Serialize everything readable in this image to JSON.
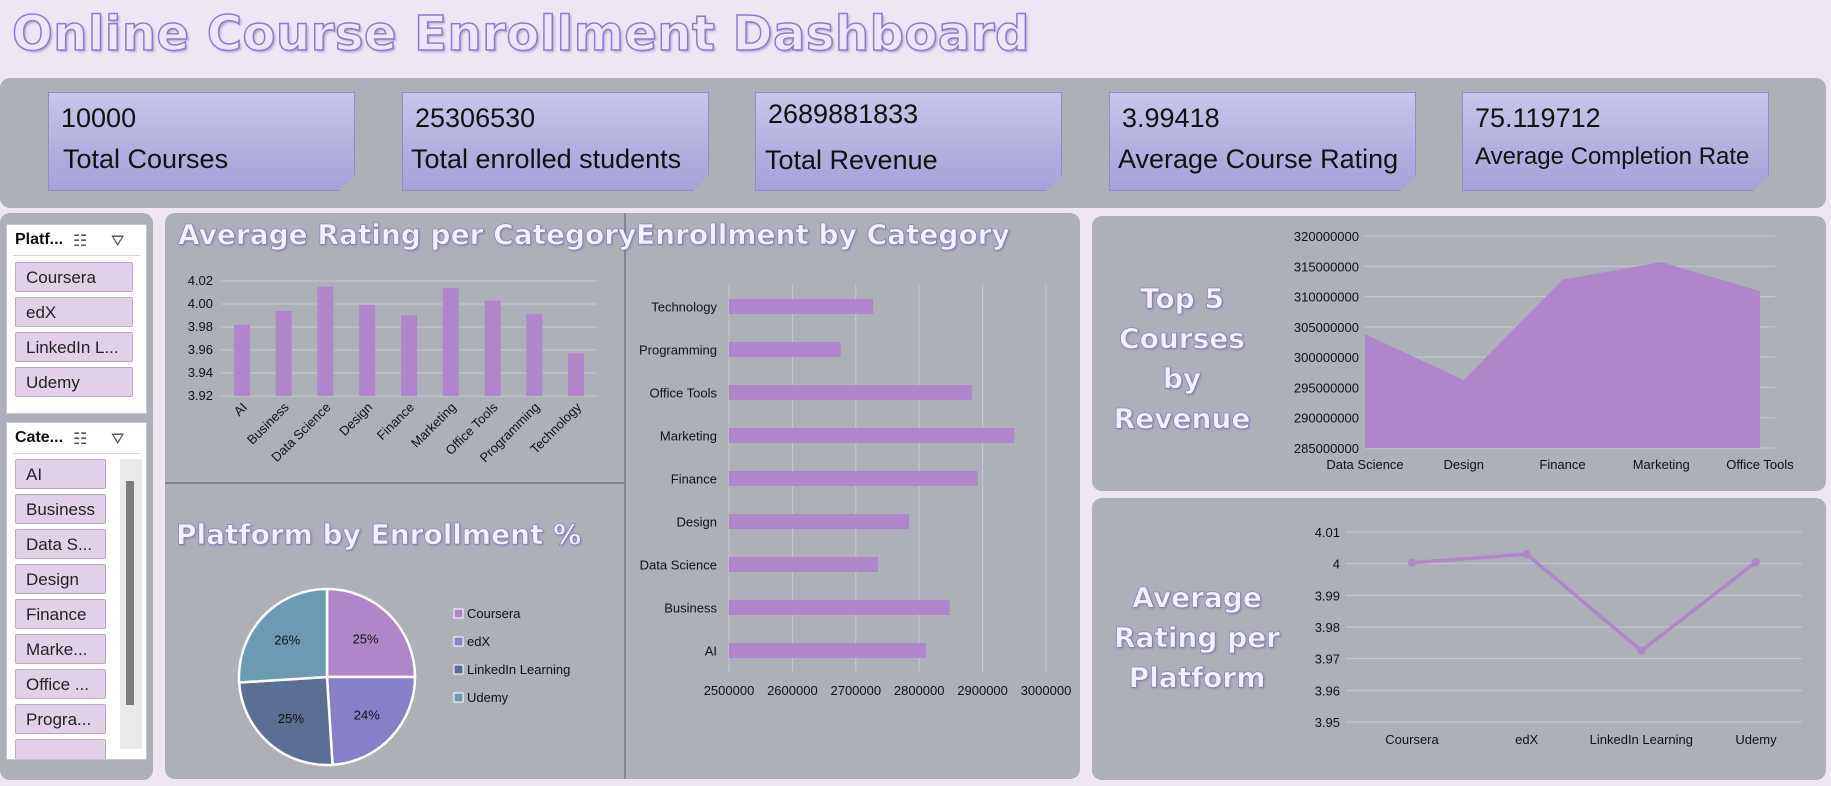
{
  "dashboard": {
    "title": "Online Course Enrollment Dashboard"
  },
  "kpis": [
    {
      "value": "10000",
      "label": "Total Courses"
    },
    {
      "value": "25306530",
      "label": "Total enrolled students"
    },
    {
      "value": "2689881833",
      "label": "Total Revenue"
    },
    {
      "value": "3.99418",
      "label": "Average Course Rating"
    },
    {
      "value": "75.119712",
      "label": "Average Completion Rate"
    }
  ],
  "slicers": {
    "platform": {
      "header": "Platf...",
      "items": [
        "Coursera",
        "edX",
        "LinkedIn L...",
        "Udemy"
      ]
    },
    "category": {
      "header": "Cate...",
      "items": [
        "AI",
        "Business",
        "Data S...",
        "Design",
        "Finance",
        "Marke...",
        "Office ...",
        "Progra..."
      ]
    }
  },
  "icons": {
    "multiselect": "multi-select-icon",
    "clear": "clear-filter-icon"
  },
  "colors": {
    "bar": "#ae86c9",
    "panel": "#adb0b9",
    "kpi": "#b7b4e2",
    "pie": [
      "#ae86c9",
      "#8680c8",
      "#5a6e96",
      "#6b9ab2"
    ]
  },
  "chart_data": [
    {
      "type": "bar",
      "title": "Average Rating per Category",
      "categories": [
        "AI",
        "Business",
        "Data Science",
        "Design",
        "Finance",
        "Marketing",
        "Office Tools",
        "Programming",
        "Technology"
      ],
      "values": [
        3.982,
        3.994,
        4.015,
        3.999,
        3.99,
        4.014,
        4.003,
        3.991,
        3.957
      ],
      "ylim": [
        3.92,
        4.02
      ],
      "yticks": [
        "3.92",
        "3.94",
        "3.96",
        "3.98",
        "4.00",
        "4.02"
      ],
      "grid": true
    },
    {
      "type": "pie",
      "title": "Platform by Enrollment %",
      "labels": [
        "Coursera",
        "edX",
        "LinkedIn Learning",
        "Udemy"
      ],
      "values": [
        25,
        24,
        25,
        26
      ],
      "data_labels": [
        "25%",
        "24%",
        "25%",
        "26%"
      ],
      "legend": "right"
    },
    {
      "type": "bar",
      "orientation": "horizontal",
      "title": "Enrollment by Category",
      "categories": [
        "Technology",
        "Programming",
        "Office Tools",
        "Marketing",
        "Finance",
        "Design",
        "Data Science",
        "Business",
        "AI"
      ],
      "values": [
        2727000,
        2676000,
        2883000,
        2950000,
        2892000,
        2784000,
        2735000,
        2848000,
        2811000
      ],
      "xlim": [
        2500000,
        3000000
      ],
      "xticks": [
        "2500000",
        "2600000",
        "2700000",
        "2800000",
        "2900000",
        "3000000"
      ],
      "grid": true
    },
    {
      "type": "area",
      "title": "Top 5 Courses by Revenue",
      "categories": [
        "Data Science",
        "Design",
        "Finance",
        "Marketing",
        "Office Tools"
      ],
      "values": [
        303800000,
        296200000,
        312800000,
        315700000,
        310900000
      ],
      "ylim": [
        285000000,
        320000000
      ],
      "yticks": [
        "285000000",
        "290000000",
        "295000000",
        "300000000",
        "305000000",
        "310000000",
        "315000000",
        "320000000"
      ],
      "grid": true
    },
    {
      "type": "line",
      "title": "Average Rating per Platform",
      "categories": [
        "Coursera",
        "edX",
        "LinkedIn Learning",
        "Udemy"
      ],
      "values": [
        4.0003,
        4.003,
        3.9725,
        4.0005
      ],
      "ylim": [
        3.95,
        4.01
      ],
      "yticks": [
        "3.95",
        "3.96",
        "3.97",
        "3.98",
        "3.99",
        "4",
        "4.01"
      ],
      "grid": true
    }
  ]
}
